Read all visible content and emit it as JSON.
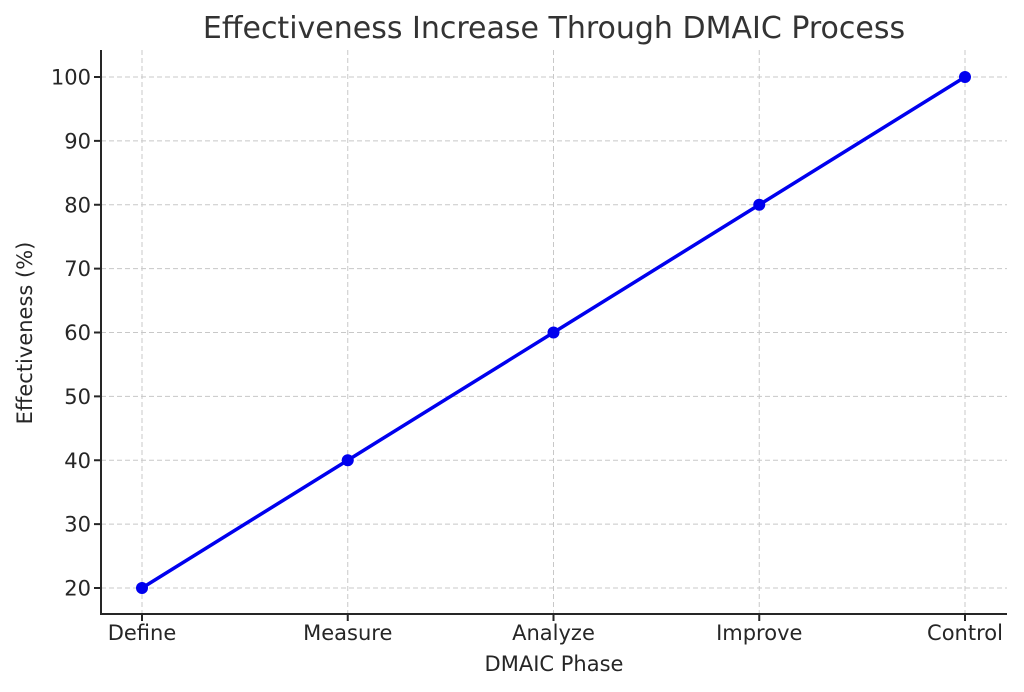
{
  "chart_data": {
    "type": "line",
    "title": "Effectiveness Increase Through DMAIC Process",
    "xlabel": "DMAIC Phase",
    "ylabel": "Effectiveness (%)",
    "categories": [
      "Define",
      "Measure",
      "Analyze",
      "Improve",
      "Control"
    ],
    "series": [
      {
        "name": "Effectiveness",
        "values": [
          20,
          40,
          60,
          80,
          100
        ],
        "color": "#0000ee",
        "marker": "circle"
      }
    ],
    "yticks": [
      20,
      30,
      40,
      50,
      60,
      70,
      80,
      90,
      100
    ],
    "ylim": [
      16,
      104
    ],
    "grid": true,
    "legend": "none"
  }
}
